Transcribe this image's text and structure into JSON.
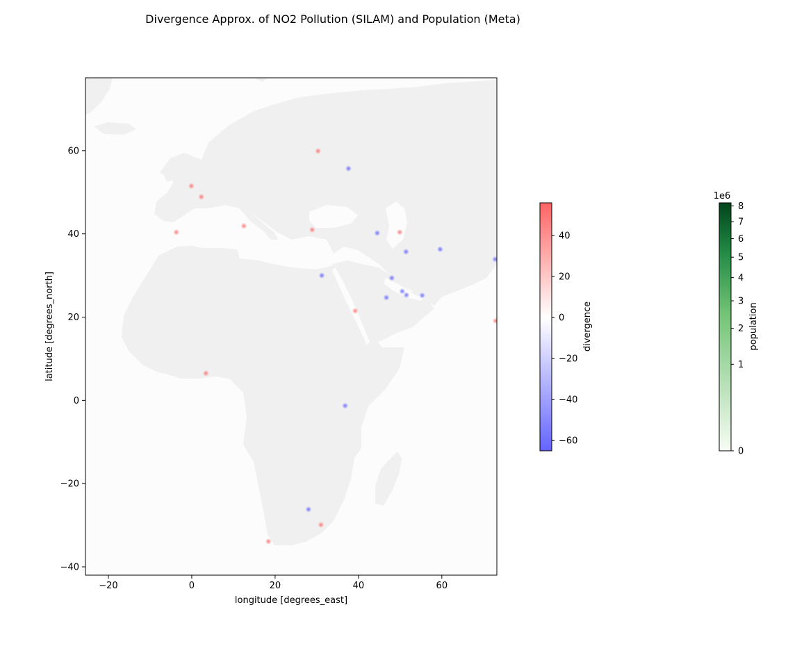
{
  "title": "Divergence Approx. of NO2 Pollution (SILAM) and Population (Meta)",
  "map": {
    "xlabel": "longitude [degrees_east]",
    "ylabel": "latitude [degrees_north]",
    "xlim": [
      -25.5,
      73.2
    ],
    "ylim": [
      -42,
      77.5
    ],
    "xticks": [
      -20,
      0,
      20,
      40,
      60
    ],
    "yticks": [
      -40,
      -20,
      0,
      20,
      40,
      60
    ],
    "land_color": "#f0f0f0",
    "ocean_color": "#fcfcfc",
    "hotspots": [
      {
        "lon": 51.4,
        "lat": 35.7,
        "sign": "negative"
      },
      {
        "lon": 59.6,
        "lat": 36.3,
        "sign": "negative"
      },
      {
        "lon": 48.0,
        "lat": 29.4,
        "sign": "negative"
      },
      {
        "lon": 50.5,
        "lat": 26.2,
        "sign": "negative"
      },
      {
        "lon": 51.5,
        "lat": 25.3,
        "sign": "negative"
      },
      {
        "lon": 46.7,
        "lat": 24.7,
        "sign": "negative"
      },
      {
        "lon": 55.3,
        "lat": 25.2,
        "sign": "negative"
      },
      {
        "lon": 39.2,
        "lat": 21.5,
        "sign": "positive"
      },
      {
        "lon": 28.0,
        "lat": -26.2,
        "sign": "negative"
      },
      {
        "lon": 31.0,
        "lat": -29.9,
        "sign": "positive"
      },
      {
        "lon": 18.4,
        "lat": -33.9,
        "sign": "positive"
      },
      {
        "lon": 37.6,
        "lat": 55.7,
        "sign": "negative"
      },
      {
        "lon": 30.3,
        "lat": 59.9,
        "sign": "positive"
      },
      {
        "lon": 44.5,
        "lat": 40.2,
        "sign": "negative"
      },
      {
        "lon": 49.9,
        "lat": 40.4,
        "sign": "positive"
      },
      {
        "lon": 72.8,
        "lat": 33.9,
        "sign": "negative"
      },
      {
        "lon": 72.9,
        "lat": 19.1,
        "sign": "positive"
      },
      {
        "lon": 28.9,
        "lat": 41.0,
        "sign": "positive"
      },
      {
        "lon": 2.3,
        "lat": 48.9,
        "sign": "positive"
      },
      {
        "lon": -0.1,
        "lat": 51.5,
        "sign": "positive"
      },
      {
        "lon": 12.5,
        "lat": 41.9,
        "sign": "positive"
      },
      {
        "lon": -3.7,
        "lat": 40.4,
        "sign": "positive"
      },
      {
        "lon": 31.2,
        "lat": 30.0,
        "sign": "negative"
      },
      {
        "lon": 3.4,
        "lat": 6.5,
        "sign": "positive"
      },
      {
        "lon": 36.8,
        "lat": -1.3,
        "sign": "negative"
      }
    ]
  },
  "divergence_colorbar": {
    "label": "divergence",
    "min": -65,
    "max": 56,
    "ticks": [
      -60,
      -40,
      -20,
      0,
      20,
      40
    ],
    "colors": [
      "#6464ff",
      "#ffffff",
      "#ff6464"
    ]
  },
  "population_colorbar": {
    "label": "population",
    "offset_label": "1e6",
    "ticks": [
      "0",
      "1",
      "2",
      "3",
      "4",
      "5",
      "6",
      "7",
      "8"
    ],
    "tick_values": [
      0,
      1,
      2,
      3,
      4,
      5,
      6,
      7,
      8
    ],
    "max": 8.2,
    "colors": [
      "#f7fcf5",
      "#74c476",
      "#00441b"
    ]
  }
}
